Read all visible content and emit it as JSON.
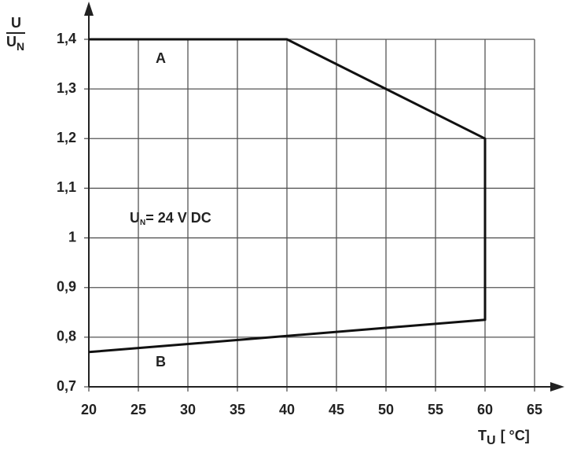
{
  "chart_data": {
    "type": "line",
    "x": [
      20,
      40,
      60,
      60,
      20
    ],
    "values": [
      1.4,
      1.4,
      1.2,
      0.835,
      0.77
    ],
    "color": "#111111",
    "xlim": [
      20,
      65
    ],
    "xticks": [
      20,
      25,
      30,
      35,
      40,
      45,
      50,
      55,
      60,
      65
    ],
    "ylim": [
      0.7,
      1.4
    ],
    "yticks": [
      {
        "value": 0.7,
        "label": "0,7"
      },
      {
        "value": 0.8,
        "label": "0,8"
      },
      {
        "value": 0.9,
        "label": "0,9"
      },
      1,
      {
        "value": 1.1,
        "label": "1,1"
      },
      {
        "value": 1.2,
        "label": "1,2"
      },
      {
        "value": 1.3,
        "label": "1,3"
      },
      {
        "value": 1.4,
        "label": "1,4"
      }
    ],
    "grid": true,
    "ylabel": {
      "numerator": "U",
      "denominator": "U",
      "subscript": "N"
    },
    "xlabel": {
      "text": "T",
      "subscript": "U",
      "unit": "[ °C]"
    },
    "annotations": [
      {
        "text": "A"
      },
      {
        "text": "B"
      },
      {
        "text": "U",
        "subscript": "N",
        "rest": "= 24 V DC"
      }
    ]
  }
}
